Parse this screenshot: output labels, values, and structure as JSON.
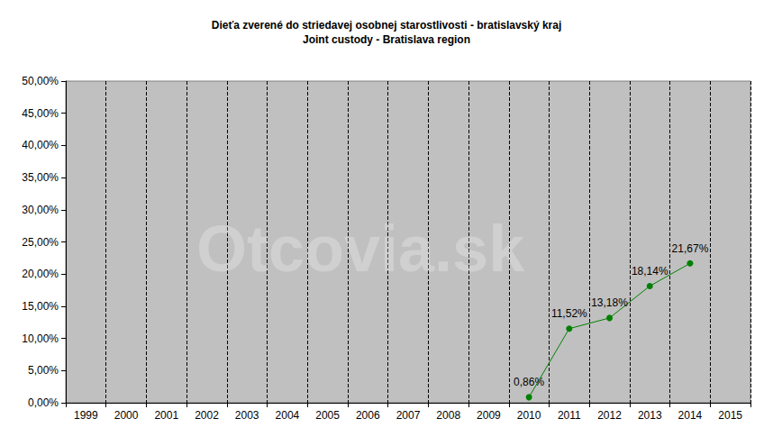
{
  "chart_data": {
    "type": "line",
    "title": "Dieťa zverené do striedavej osobnej starostlivosti - bratislavský kraj",
    "subtitle": "Joint custody - Bratislava region",
    "watermark": "Otcovia.sk",
    "categories": [
      "1999",
      "2000",
      "2001",
      "2002",
      "2003",
      "2004",
      "2005",
      "2006",
      "2007",
      "2008",
      "2009",
      "2010",
      "2011",
      "2012",
      "2013",
      "2014",
      "2015"
    ],
    "values": [
      null,
      null,
      null,
      null,
      null,
      null,
      null,
      null,
      null,
      null,
      null,
      0.86,
      11.52,
      13.18,
      18.14,
      21.67,
      null
    ],
    "value_labels": [
      null,
      null,
      null,
      null,
      null,
      null,
      null,
      null,
      null,
      null,
      null,
      "0,86%",
      "11,52%",
      "13,18%",
      "18,14%",
      "21,67%",
      null
    ],
    "color": "#008000",
    "marker": "circle",
    "ylim": [
      0,
      50
    ],
    "yticks": [
      {
        "value": 0,
        "label": "0,00%"
      },
      {
        "value": 5,
        "label": "5,00%"
      },
      {
        "value": 10,
        "label": "10,00%"
      },
      {
        "value": 15,
        "label": "15,00%"
      },
      {
        "value": 20,
        "label": "20,00%"
      },
      {
        "value": 25,
        "label": "25,00%"
      },
      {
        "value": 30,
        "label": "30,00%"
      },
      {
        "value": 35,
        "label": "35,00%"
      },
      {
        "value": 40,
        "label": "40,00%"
      },
      {
        "value": 45,
        "label": "45,00%"
      },
      {
        "value": 50,
        "label": "50,00%"
      }
    ],
    "grid": "x",
    "data_labels": true
  }
}
